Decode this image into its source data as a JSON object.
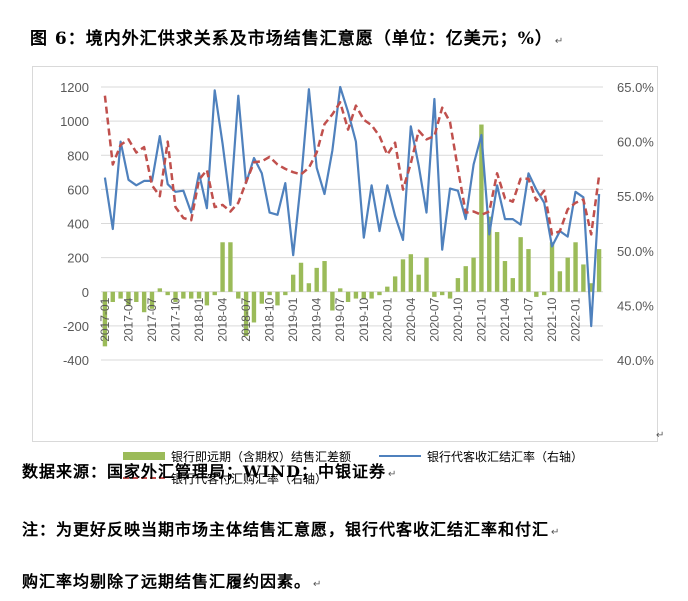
{
  "title": "图 6：境内外汇供求关系及市场结售汇意愿（单位：亿美元；%）",
  "para_mark": "↵",
  "source_line": "数据来源：国家外汇管理局；WIND；中银证券",
  "note_line1": "注：为更好反映当期市场主体结售汇意愿，银行代客收汇结汇率和付汇",
  "note_line2": "购汇率均剔除了远期结售汇履约因素。",
  "chart_data": {
    "type": "bar+line",
    "categories": [
      "2017-01",
      "2017-02",
      "2017-03",
      "2017-04",
      "2017-05",
      "2017-06",
      "2017-07",
      "2017-08",
      "2017-09",
      "2017-10",
      "2017-11",
      "2017-12",
      "2018-01",
      "2018-02",
      "2018-03",
      "2018-04",
      "2018-05",
      "2018-06",
      "2018-07",
      "2018-08",
      "2018-09",
      "2018-10",
      "2018-11",
      "2018-12",
      "2019-01",
      "2019-02",
      "2019-03",
      "2019-04",
      "2019-05",
      "2019-06",
      "2019-07",
      "2019-08",
      "2019-09",
      "2019-10",
      "2019-11",
      "2019-12",
      "2020-01",
      "2020-02",
      "2020-03",
      "2020-04",
      "2020-05",
      "2020-06",
      "2020-07",
      "2020-08",
      "2020-09",
      "2020-10",
      "2020-11",
      "2020-12",
      "2021-01",
      "2021-02",
      "2021-03",
      "2021-04",
      "2021-05",
      "2021-06",
      "2021-07",
      "2021-08",
      "2021-09",
      "2021-10",
      "2021-11",
      "2021-12",
      "2022-01",
      "2022-02",
      "2022-03",
      "2022-04"
    ],
    "x_tick_labels": [
      "2017-01",
      "2017-04",
      "2017-07",
      "2017-10",
      "2018-01",
      "2018-04",
      "2018-07",
      "2018-10",
      "2019-01",
      "2019-04",
      "2019-07",
      "2019-10",
      "2020-01",
      "2020-04",
      "2020-07",
      "2020-10",
      "2021-01",
      "2021-04",
      "2021-07",
      "2021-10",
      "2022-01"
    ],
    "y_left": {
      "min": -400,
      "max": 1200,
      "step": 200,
      "ticks": [
        "-400",
        "-200",
        "0",
        "200",
        "400",
        "600",
        "800",
        "1000",
        "1200"
      ]
    },
    "y_right": {
      "min": 40,
      "max": 65,
      "step": 5,
      "ticks": [
        "40.0%",
        "45.0%",
        "50.0%",
        "55.0%",
        "60.0%",
        "65.0%"
      ]
    },
    "grid": true,
    "legend_position": "bottom",
    "series": [
      {
        "name": "银行即远期（含期权）结售汇差额",
        "type": "bar",
        "axis": "left",
        "color": "#9bbb59",
        "values": [
          -320,
          -60,
          -40,
          -80,
          -60,
          -120,
          -100,
          20,
          -20,
          -60,
          -40,
          -40,
          -40,
          -80,
          -20,
          290,
          290,
          -40,
          -260,
          -180,
          -70,
          -20,
          -80,
          -20,
          100,
          170,
          50,
          140,
          180,
          -110,
          20,
          -60,
          -40,
          -40,
          -40,
          -20,
          30,
          90,
          190,
          220,
          100,
          200,
          -30,
          -20,
          -40,
          80,
          150,
          200,
          980,
          440,
          350,
          180,
          80,
          320,
          250,
          -30,
          -20,
          290,
          120,
          200,
          290,
          160,
          50,
          250
        ]
      },
      {
        "name": "银行代客收汇结汇率（右轴）",
        "type": "line",
        "axis": "right",
        "color": "#4f81bd",
        "dashed": false,
        "values": [
          56.7,
          52.0,
          60.0,
          56.5,
          56.0,
          56.4,
          56.4,
          60.5,
          56.1,
          55.4,
          55.5,
          53.5,
          57.1,
          53.9,
          64.7,
          59.8,
          54.2,
          64.2,
          56.2,
          58.5,
          57.1,
          53.5,
          53.3,
          56.2,
          49.6,
          56.4,
          64.8,
          57.6,
          55.2,
          59.2,
          65.0,
          62.7,
          60.0,
          51.2,
          56.0,
          51.8,
          56.0,
          53.2,
          51.0,
          61.4,
          57.8,
          53.5,
          63.9,
          50.1,
          55.7,
          55.5,
          52.9,
          57.9,
          60.6,
          51.5,
          56.0,
          52.9,
          52.9,
          52.4,
          57.1,
          55.6,
          54.4,
          50.4,
          51.8,
          51.3,
          55.4,
          54.9,
          43.1,
          55.2
        ]
      },
      {
        "name": "银行代客付汇购汇率（右轴）",
        "type": "line",
        "axis": "right",
        "color": "#c0504d",
        "dashed": true,
        "values": [
          64.2,
          57.9,
          59.7,
          60.2,
          59.0,
          59.5,
          56.0,
          55.0,
          60.0,
          54.0,
          53.0,
          52.8,
          56.5,
          57.4,
          54.0,
          54.2,
          53.6,
          54.4,
          56.3,
          58.1,
          58.2,
          58.6,
          57.9,
          57.5,
          57.2,
          57.0,
          57.6,
          59.0,
          61.6,
          62.5,
          63.6,
          61.1,
          63.3,
          62.0,
          61.5,
          60.5,
          58.8,
          59.9,
          55.6,
          58.0,
          61.0,
          60.2,
          60.5,
          63.1,
          61.8,
          57.5,
          53.5,
          53.6,
          53.3,
          53.6,
          57.1,
          54.8,
          54.5,
          56.6,
          56.6,
          54.6,
          55.5,
          51.5,
          51.8,
          53.8,
          54.4,
          54.7,
          51.5,
          56.9
        ]
      }
    ]
  }
}
